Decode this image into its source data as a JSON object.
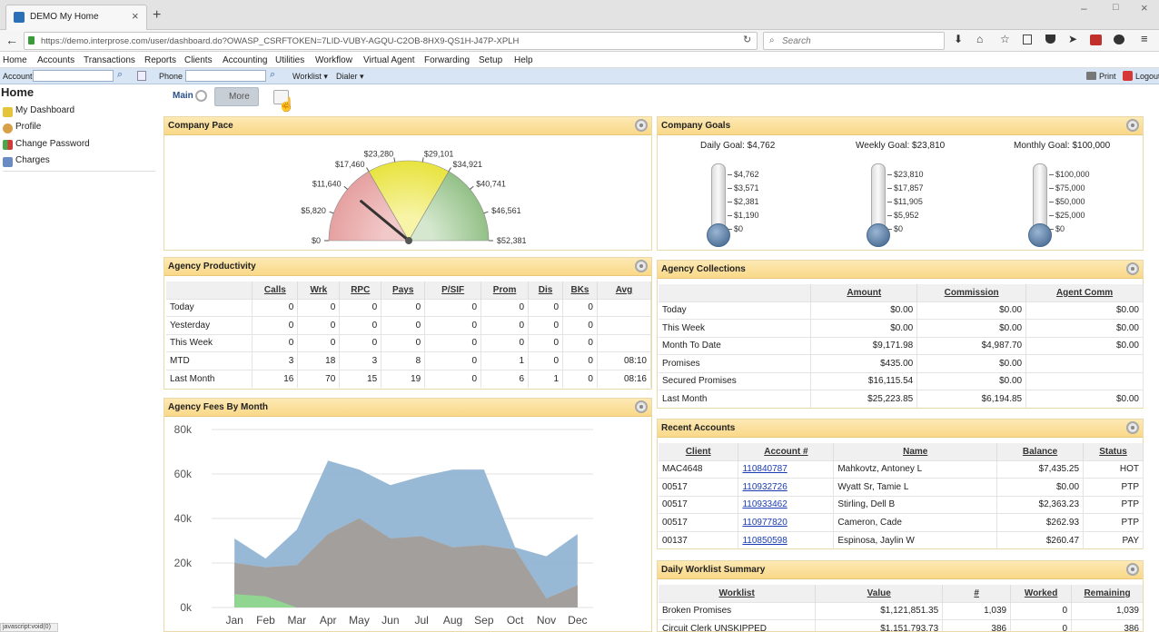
{
  "browser": {
    "tab_title": "DEMO My Home",
    "url": "https://demo.interprose.com/user/dashboard.do?OWASP_CSRFTOKEN=7LID-VUBY-AGQU-C2OB-8HX9-QS1H-J47P-XPLH",
    "search_placeholder": "Search",
    "status_text": "javascript:void(0)"
  },
  "menu": [
    "Home",
    "Accounts",
    "Transactions",
    "Reports",
    "Clients",
    "Accounting",
    "Utilities",
    "Workflow",
    "Virtual Agent",
    "Forwarding",
    "Setup",
    "Help"
  ],
  "toolbar": {
    "account_label": "Account",
    "phone_label": "Phone",
    "worklist_label": "Worklist",
    "dialer_label": "Dialer",
    "print_label": "Print",
    "logout_label": "Logout"
  },
  "sidebar": {
    "title": "Home",
    "items": [
      "My Dashboard",
      "Profile",
      "Change Password",
      "Charges"
    ]
  },
  "tabs": {
    "main": "Main",
    "more": "More"
  },
  "company_pace": {
    "title": "Company Pace",
    "labels": [
      "$0",
      "$5,820",
      "$11,640",
      "$17,460",
      "$23,280",
      "$29,101",
      "$34,921",
      "$40,741",
      "$46,561",
      "$52,381"
    ],
    "value_fraction": 0.22
  },
  "company_goals": {
    "title": "Company Goals",
    "goals": [
      {
        "label": "Daily Goal: $4,762",
        "ticks": [
          "$4,762",
          "$3,571",
          "$2,381",
          "$1,190",
          "$0"
        ]
      },
      {
        "label": "Weekly Goal: $23,810",
        "ticks": [
          "$23,810",
          "$17,857",
          "$11,905",
          "$5,952",
          "$0"
        ]
      },
      {
        "label": "Monthly Goal: $100,000",
        "ticks": [
          "$100,000",
          "$75,000",
          "$50,000",
          "$25,000",
          "$0"
        ]
      }
    ]
  },
  "productivity": {
    "title": "Agency Productivity",
    "headers": [
      "",
      "Calls",
      "Wrk",
      "RPC",
      "Pays",
      "P/SIF",
      "Prom",
      "Dis",
      "BKs",
      "Avg"
    ],
    "rows": [
      [
        "Today",
        "0",
        "0",
        "0",
        "0",
        "0",
        "0",
        "0",
        "0",
        ""
      ],
      [
        "Yesterday",
        "0",
        "0",
        "0",
        "0",
        "0",
        "0",
        "0",
        "0",
        ""
      ],
      [
        "This Week",
        "0",
        "0",
        "0",
        "0",
        "0",
        "0",
        "0",
        "0",
        ""
      ],
      [
        "MTD",
        "3",
        "18",
        "3",
        "8",
        "0",
        "1",
        "0",
        "0",
        "08:10"
      ],
      [
        "Last Month",
        "16",
        "70",
        "15",
        "19",
        "0",
        "6",
        "1",
        "0",
        "08:16"
      ]
    ]
  },
  "collections": {
    "title": "Agency Collections",
    "headers": [
      "",
      "Amount",
      "Commission",
      "Agent Comm"
    ],
    "rows": [
      [
        "Today",
        "$0.00",
        "$0.00",
        "$0.00"
      ],
      [
        "This Week",
        "$0.00",
        "$0.00",
        "$0.00"
      ],
      [
        "Month To Date",
        "$9,171.98",
        "$4,987.70",
        "$0.00"
      ],
      [
        "Promises",
        "$435.00",
        "$0.00",
        ""
      ],
      [
        "Secured Promises",
        "$16,115.54",
        "$0.00",
        ""
      ],
      [
        "Last Month",
        "$25,223.85",
        "$6,194.85",
        "$0.00"
      ]
    ]
  },
  "recent_accounts": {
    "title": "Recent Accounts",
    "headers": [
      "Client",
      "Account #",
      "Name",
      "Balance",
      "Status"
    ],
    "rows": [
      [
        "MAC4648",
        "110840787",
        "Mahkovtz, Antoney L",
        "$7,435.25",
        "HOT"
      ],
      [
        "00517",
        "110932726",
        "Wyatt Sr, Tamie L",
        "$0.00",
        "PTP"
      ],
      [
        "00517",
        "110933462",
        "Stirling, Dell B",
        "$2,363.23",
        "PTP"
      ],
      [
        "00517",
        "110977820",
        "Cameron, Cade",
        "$262.93",
        "PTP"
      ],
      [
        "00137",
        "110850598",
        "Espinosa, Jaylin W",
        "$260.47",
        "PAY"
      ]
    ]
  },
  "worklist": {
    "title": "Daily Worklist Summary",
    "headers": [
      "Worklist",
      "Value",
      "#",
      "Worked",
      "Remaining"
    ],
    "rows": [
      [
        "Broken Promises",
        "$1,121,851.35",
        "1,039",
        "0",
        "1,039"
      ],
      [
        "Circuit Clerk UNSKIPPED",
        "$1,151,793.73",
        "386",
        "0",
        "386"
      ]
    ]
  },
  "fees": {
    "title": "Agency Fees By Month"
  },
  "chart_data": {
    "type": "area",
    "title": "Agency Fees By Month",
    "categories": [
      "Jan",
      "Feb",
      "Mar",
      "Apr",
      "May",
      "Jun",
      "Jul",
      "Aug",
      "Sep",
      "Oct",
      "Nov",
      "Dec"
    ],
    "ylim": [
      0,
      80000
    ],
    "yticks": [
      "0k",
      "20k",
      "40k",
      "60k",
      "80k"
    ],
    "colors": [
      "#8eb3d3",
      "#f5b06a",
      "#9e9e9e",
      "#8fd88f"
    ],
    "series": [
      {
        "values": [
          31000,
          22000,
          35000,
          66000,
          62000,
          55000,
          59000,
          62000,
          62000,
          27000,
          23000,
          33000
        ]
      },
      {
        "values": [
          20000,
          18000,
          19000,
          33000,
          40000,
          31000,
          32000,
          27000,
          28000,
          26000,
          4000,
          10000
        ]
      },
      {
        "values": [
          6000,
          5000,
          0,
          0,
          0,
          0,
          0,
          0,
          0,
          0,
          0,
          0
        ]
      }
    ],
    "grid": true
  }
}
